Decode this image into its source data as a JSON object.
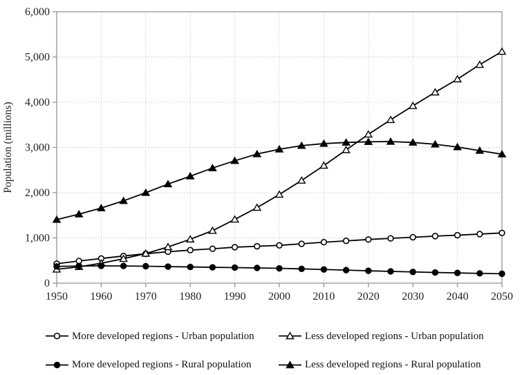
{
  "figure": {
    "background": "#ffffff",
    "text_color": "#222222",
    "axis_color": "#8c8c8c",
    "gridline_color": "#c9c9c9",
    "series_color": "#000000"
  },
  "chart_data": {
    "type": "line",
    "title": "",
    "xlabel": "",
    "ylabel": "Population (millions)",
    "ylim": [
      0,
      6000
    ],
    "ytick_step": 1000,
    "xlim": [
      1950,
      2050
    ],
    "xtick_step": 10,
    "grid": "dotted",
    "legend_position": "bottom",
    "x": [
      1950,
      1955,
      1960,
      1965,
      1970,
      1975,
      1980,
      1985,
      1990,
      1995,
      2000,
      2005,
      2010,
      2015,
      2020,
      2025,
      2030,
      2035,
      2040,
      2045,
      2050
    ],
    "series": [
      {
        "name": "More developed regions - Urban population",
        "marker": "circle-open",
        "values": [
          430,
          490,
          545,
          600,
          650,
          695,
          730,
          760,
          795,
          815,
          835,
          870,
          905,
          935,
          965,
          990,
          1015,
          1040,
          1060,
          1085,
          1110
        ]
      },
      {
        "name": "Less developed regions - Urban population",
        "marker": "triangle-open",
        "values": [
          305,
          360,
          440,
          540,
          655,
          800,
          970,
          1160,
          1410,
          1670,
          1960,
          2270,
          2600,
          2945,
          3290,
          3610,
          3920,
          4220,
          4510,
          4830,
          5120
        ]
      },
      {
        "name": "More developed regions - Rural population",
        "marker": "circle-filled",
        "values": [
          370,
          378,
          382,
          380,
          374,
          366,
          358,
          350,
          344,
          337,
          328,
          316,
          302,
          288,
          274,
          260,
          248,
          236,
          226,
          216,
          208
        ]
      },
      {
        "name": "Less developed regions - Rural population",
        "marker": "triangle-filled",
        "values": [
          1405,
          1525,
          1660,
          1820,
          2000,
          2190,
          2365,
          2545,
          2705,
          2855,
          2960,
          3040,
          3085,
          3110,
          3125,
          3130,
          3110,
          3070,
          3010,
          2930,
          2850
        ]
      }
    ]
  }
}
